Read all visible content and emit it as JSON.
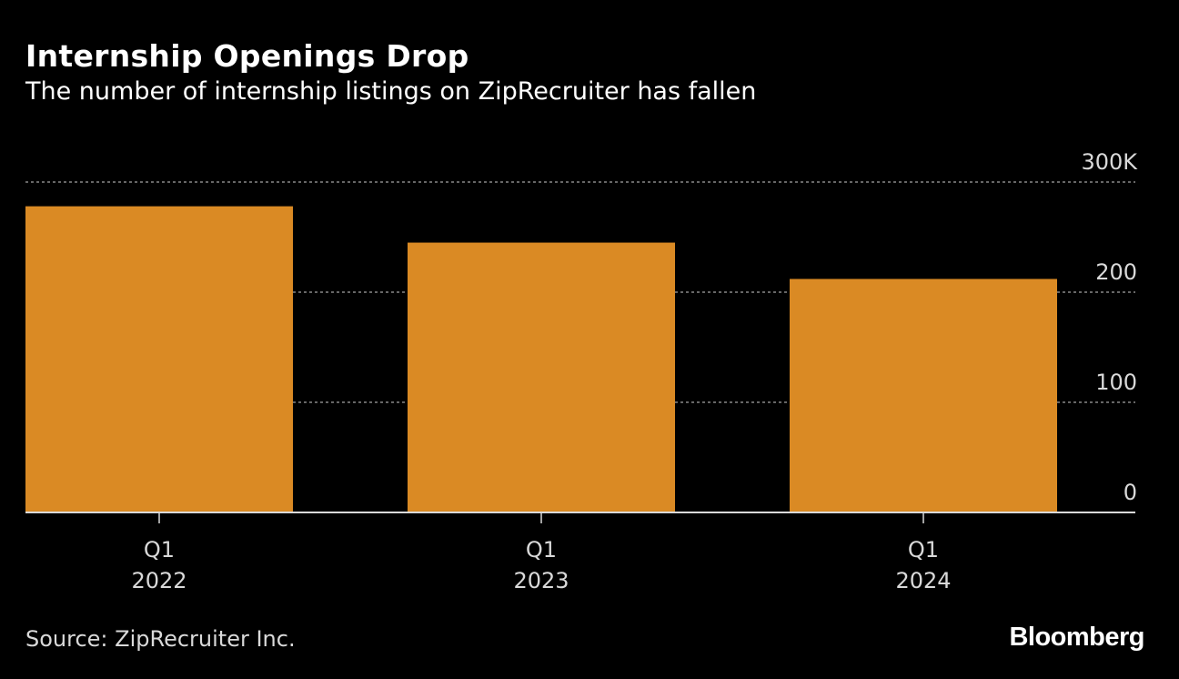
{
  "chart_data": {
    "type": "bar",
    "title": "Internship Openings Drop",
    "subtitle": "The number of internship listings on ZipRecruiter has fallen",
    "categories": [
      [
        "Q1",
        "2022"
      ],
      [
        "Q1",
        "2023"
      ],
      [
        "Q1",
        "2024"
      ]
    ],
    "values": [
      278,
      245,
      212
    ],
    "unit": "thousands",
    "ylim": [
      0,
      300
    ],
    "yticks": [
      0,
      100,
      200,
      300
    ],
    "ytick_labels": [
      "0",
      "100",
      "200",
      "300K"
    ],
    "grid": true,
    "xlabel": "",
    "ylabel": "",
    "bar_color": "#DA8A24"
  },
  "source": "Source: ZipRecruiter Inc.",
  "logo": "Bloomberg"
}
